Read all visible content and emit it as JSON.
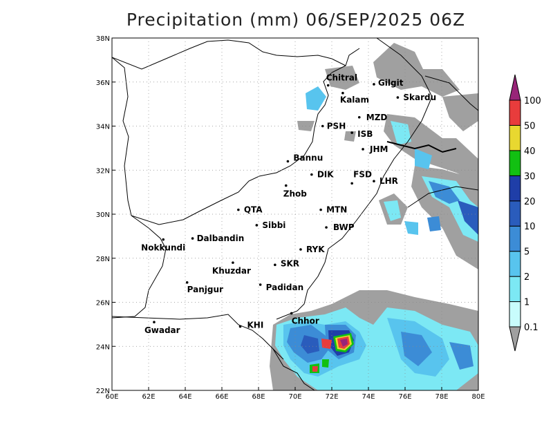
{
  "title": "Precipitation (mm) 06/SEP/2025 06Z",
  "axes": {
    "x_ticks": [
      "60E",
      "62E",
      "64E",
      "66E",
      "68E",
      "70E",
      "72E",
      "74E",
      "76E",
      "78E",
      "80E"
    ],
    "y_ticks": [
      "22N",
      "24N",
      "26N",
      "28N",
      "30N",
      "32N",
      "34N",
      "36N",
      "38N"
    ]
  },
  "cities": [
    {
      "name": "Chitral",
      "lon": 71.8,
      "lat": 35.85
    },
    {
      "name": "Gilgit",
      "lon": 74.3,
      "lat": 35.9
    },
    {
      "name": "Kalam",
      "lon": 72.6,
      "lat": 35.5
    },
    {
      "name": "Skardu",
      "lon": 75.6,
      "lat": 35.3
    },
    {
      "name": "MZD",
      "lon": 73.5,
      "lat": 34.4
    },
    {
      "name": "PSH",
      "lon": 71.5,
      "lat": 34.0
    },
    {
      "name": "ISB",
      "lon": 73.1,
      "lat": 33.7
    },
    {
      "name": "JHM",
      "lon": 73.7,
      "lat": 32.95
    },
    {
      "name": "Bannu",
      "lon": 69.6,
      "lat": 32.4
    },
    {
      "name": "DIK",
      "lon": 70.9,
      "lat": 31.8
    },
    {
      "name": "FSD",
      "lon": 73.1,
      "lat": 31.4
    },
    {
      "name": "LHR",
      "lon": 74.3,
      "lat": 31.5
    },
    {
      "name": "Zhob",
      "lon": 69.5,
      "lat": 31.3
    },
    {
      "name": "QTA",
      "lon": 66.9,
      "lat": 30.2
    },
    {
      "name": "MTN",
      "lon": 71.4,
      "lat": 30.2
    },
    {
      "name": "Sibbi",
      "lon": 67.9,
      "lat": 29.5
    },
    {
      "name": "BWP",
      "lon": 71.7,
      "lat": 29.4
    },
    {
      "name": "Nokkundi",
      "lon": 62.8,
      "lat": 28.85
    },
    {
      "name": "Dalbandin",
      "lon": 64.4,
      "lat": 28.9
    },
    {
      "name": "RYK",
      "lon": 70.3,
      "lat": 28.4
    },
    {
      "name": "Khuzdar",
      "lon": 66.6,
      "lat": 27.8
    },
    {
      "name": "SKR",
      "lon": 68.9,
      "lat": 27.7
    },
    {
      "name": "Panjgur",
      "lon": 64.1,
      "lat": 26.9
    },
    {
      "name": "Padidan",
      "lon": 68.1,
      "lat": 26.8
    },
    {
      "name": "Chhor",
      "lon": 69.8,
      "lat": 25.5
    },
    {
      "name": "Gwadar",
      "lon": 62.3,
      "lat": 25.1
    },
    {
      "name": "KHI",
      "lon": 67.0,
      "lat": 24.9
    }
  ],
  "colorbar": {
    "levels": [
      "0.1",
      "1",
      "2",
      "5",
      "10",
      "20",
      "30",
      "40",
      "50",
      "100"
    ],
    "colors": [
      "#a0a0a0",
      "#c8fcfc",
      "#7ce8f4",
      "#58c4ee",
      "#3c8cd6",
      "#2a5cbc",
      "#1f3ea8",
      "#12c012",
      "#e8d830",
      "#e83c3c",
      "#982478"
    ]
  }
}
